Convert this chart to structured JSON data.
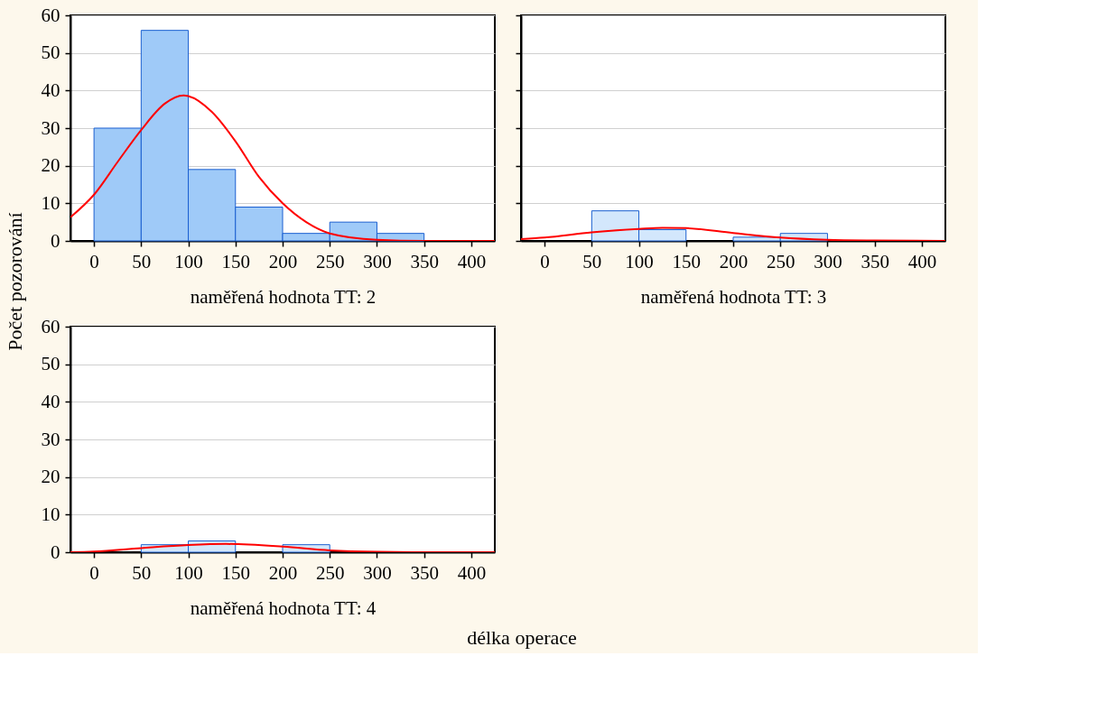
{
  "chart_data": [
    {
      "type": "histogram",
      "xlabel": "naměřená hodnota TT: 2",
      "ylabel": "Počet pozorování",
      "xlim": [
        -25,
        425
      ],
      "ylim": [
        0,
        60
      ],
      "xticks": [
        0,
        50,
        100,
        150,
        200,
        250,
        300,
        350,
        400
      ],
      "yticks": [
        0,
        10,
        20,
        30,
        40,
        50,
        60
      ],
      "grid": "y",
      "series": [
        {
          "type": "histogram",
          "color": "#9fcaf8",
          "bins": [
            0,
            50,
            100,
            150,
            200,
            250,
            300,
            350,
            400
          ],
          "values": [
            30,
            56,
            19,
            9,
            2,
            5,
            2,
            0
          ]
        },
        {
          "type": "line",
          "color": "#ff0000",
          "x": [
            -25,
            0,
            25,
            50,
            75,
            95,
            100,
            125,
            150,
            175,
            200,
            225,
            250,
            300,
            350,
            425
          ],
          "values": [
            6.3,
            12.3,
            21,
            29.5,
            36.5,
            38.7,
            38.5,
            34.3,
            26.5,
            17,
            10,
            5,
            2,
            0.3,
            0,
            0
          ]
        }
      ]
    },
    {
      "type": "histogram",
      "xlabel": "naměřená hodnota TT: 3",
      "xlim": [
        -25,
        425
      ],
      "ylim": [
        0,
        60
      ],
      "xticks": [
        0,
        50,
        100,
        150,
        200,
        250,
        300,
        350,
        400
      ],
      "yticks": [
        0,
        10,
        20,
        30,
        40,
        50,
        60
      ],
      "grid": "y",
      "tick_labels": "x",
      "series": [
        {
          "type": "histogram",
          "color": "#d3e7fc",
          "bins": [
            0,
            50,
            100,
            150,
            200,
            250,
            300,
            350,
            400
          ],
          "values": [
            0,
            8,
            3,
            0,
            1,
            2,
            0,
            0
          ]
        },
        {
          "type": "line",
          "color": "#ff0000",
          "x": [
            -25,
            0,
            50,
            100,
            125,
            150,
            200,
            250,
            300,
            350,
            425
          ],
          "values": [
            0.5,
            0.9,
            2.3,
            3.2,
            3.5,
            3.4,
            2.1,
            0.9,
            0.3,
            0.1,
            0
          ]
        }
      ]
    },
    {
      "type": "histogram",
      "xlabel": "naměřená hodnota TT: 4",
      "xlim": [
        -25,
        425
      ],
      "ylim": [
        0,
        60
      ],
      "xticks": [
        0,
        50,
        100,
        150,
        200,
        250,
        300,
        350,
        400
      ],
      "yticks": [
        0,
        10,
        20,
        30,
        40,
        50,
        60
      ],
      "grid": "y",
      "annotations": [
        "délka operace"
      ],
      "series": [
        {
          "type": "histogram",
          "color": "#d3e7fc",
          "bins": [
            0,
            50,
            100,
            150,
            200,
            250,
            300,
            350,
            400
          ],
          "values": [
            0,
            2,
            3,
            0,
            2,
            0,
            0,
            0
          ]
        },
        {
          "type": "line",
          "color": "#ff0000",
          "x": [
            -25,
            0,
            50,
            100,
            140,
            200,
            250,
            300,
            350,
            425
          ],
          "values": [
            0,
            0.2,
            1.1,
            1.9,
            2.2,
            1.5,
            0.5,
            0.1,
            0,
            0
          ]
        }
      ]
    }
  ]
}
